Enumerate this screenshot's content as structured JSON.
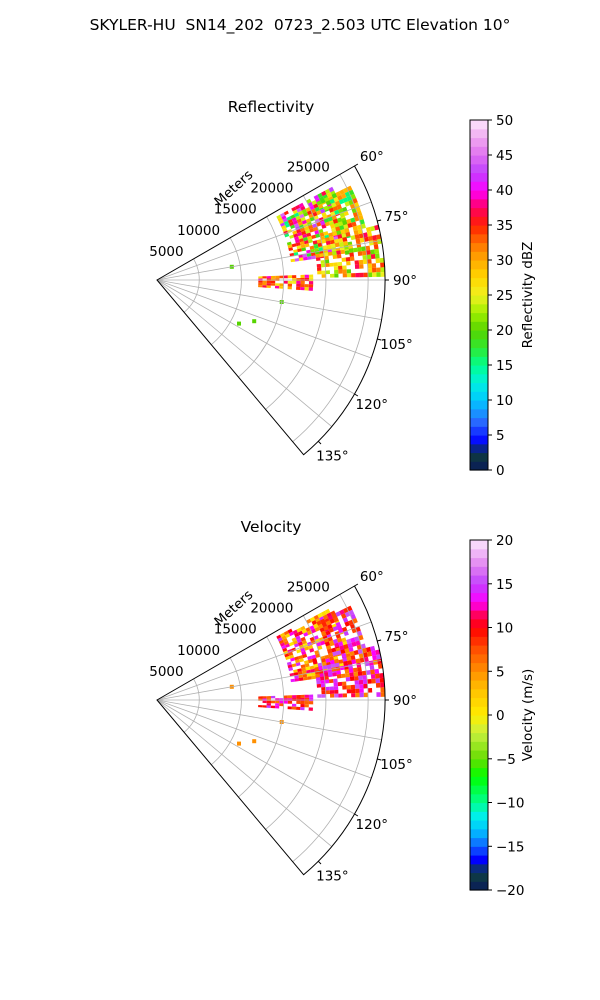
{
  "figure": {
    "title": "SKYLER-HU  SN14_202  0723_2.503 UTC Elevation 10°"
  },
  "chart_data": [
    {
      "type": "heatmap",
      "projection": "polar-sector",
      "title": "Reflectivity",
      "radial_axis_label": "Meters",
      "theta_range_deg": [
        60,
        140
      ],
      "theta_ticks": [
        60,
        75,
        90,
        105,
        120,
        135
      ],
      "theta_tick_labels": [
        "60°",
        "75°",
        "90°",
        "105°",
        "120°",
        "135°"
      ],
      "r_range": [
        0,
        27000
      ],
      "r_ticks": [
        5000,
        10000,
        15000,
        20000,
        25000
      ],
      "r_tick_labels": [
        "5000",
        "10000",
        "15000",
        "20000",
        "25000"
      ],
      "grid": true,
      "colorbar": {
        "label": "Reflectivity dBZ",
        "range": [
          0,
          50
        ],
        "ticks": [
          0,
          5,
          10,
          15,
          20,
          25,
          30,
          35,
          40,
          45,
          50
        ],
        "tick_labels": [
          "0",
          "5",
          "10",
          "15",
          "20",
          "25",
          "30",
          "35",
          "40",
          "45",
          "50"
        ]
      },
      "echo_regions": [
        {
          "theta_deg": [
            62,
            82
          ],
          "r_m": [
            16000,
            23500
          ],
          "value_range": [
            15,
            45
          ]
        },
        {
          "theta_deg": [
            64,
            76
          ],
          "r_m": [
            21000,
            25500
          ],
          "value_range": [
            15,
            35
          ]
        },
        {
          "theta_deg": [
            76,
            89
          ],
          "r_m": [
            19000,
            27000
          ],
          "value_range": [
            20,
            38
          ]
        },
        {
          "theta_deg": [
            88,
            94
          ],
          "r_m": [
            12000,
            18500
          ],
          "value_range": [
            25,
            40
          ]
        }
      ]
    },
    {
      "type": "heatmap",
      "projection": "polar-sector",
      "title": "Velocity",
      "radial_axis_label": "Meters",
      "theta_range_deg": [
        60,
        140
      ],
      "theta_ticks": [
        60,
        75,
        90,
        105,
        120,
        135
      ],
      "theta_tick_labels": [
        "60°",
        "75°",
        "90°",
        "105°",
        "120°",
        "135°"
      ],
      "r_range": [
        0,
        27000
      ],
      "r_ticks": [
        5000,
        10000,
        15000,
        20000,
        25000
      ],
      "r_tick_labels": [
        "5000",
        "10000",
        "15000",
        "20000",
        "25000"
      ],
      "grid": true,
      "colorbar": {
        "label": "Velocity (m/s)",
        "range": [
          -20,
          20
        ],
        "ticks": [
          -20,
          -15,
          -10,
          -5,
          0,
          5,
          10,
          15,
          20
        ],
        "tick_labels": [
          "−20",
          "−15",
          "−10",
          "−5",
          "0",
          "5",
          "10",
          "15",
          "20"
        ]
      },
      "echo_regions": [
        {
          "theta_deg": [
            62,
            82
          ],
          "r_m": [
            16000,
            23500
          ],
          "value_range": [
            0,
            15
          ]
        },
        {
          "theta_deg": [
            64,
            76
          ],
          "r_m": [
            21000,
            25500
          ],
          "value_range": [
            5,
            16
          ]
        },
        {
          "theta_deg": [
            76,
            89
          ],
          "r_m": [
            19000,
            27000
          ],
          "value_range": [
            5,
            16
          ]
        },
        {
          "theta_deg": [
            88,
            94
          ],
          "r_m": [
            12000,
            18500
          ],
          "value_range": [
            6,
            15
          ]
        }
      ]
    }
  ]
}
